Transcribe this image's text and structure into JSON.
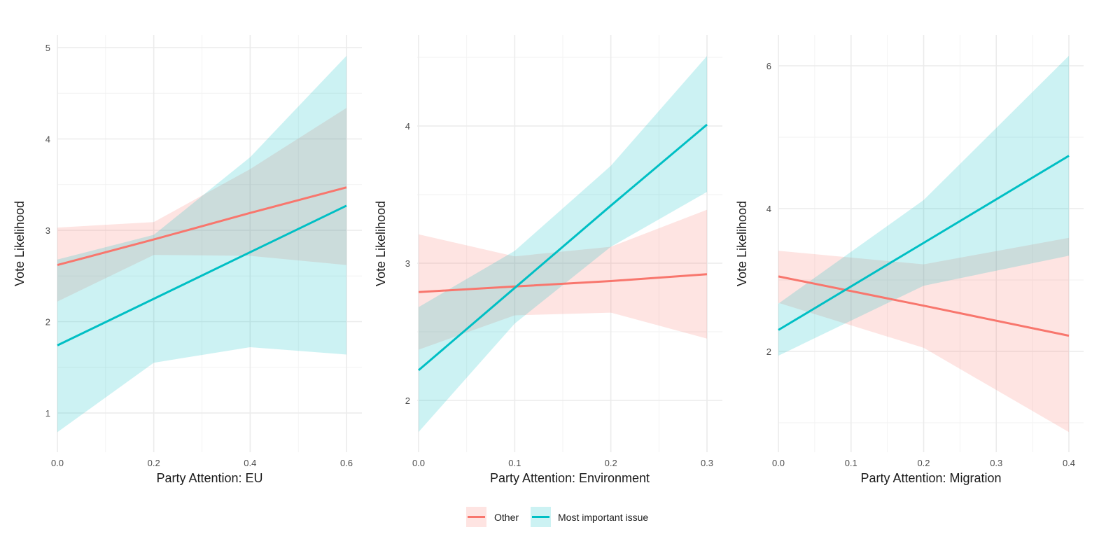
{
  "chart_data": [
    {
      "type": "line",
      "title": "",
      "xlabel": "Party Attention: EU",
      "ylabel": "Vote Likelihood",
      "xlim": [
        0.0,
        0.6
      ],
      "ylim": [
        0.6,
        5.1
      ],
      "x_ticks": [
        0.0,
        0.2,
        0.4,
        0.6
      ],
      "x_tick_labels": [
        "0.0",
        "0.2",
        "0.4",
        "0.6"
      ],
      "y_ticks": [
        1,
        2,
        3,
        4,
        5
      ],
      "y_tick_labels": [
        "1",
        "2",
        "3",
        "4",
        "5"
      ],
      "grid": true,
      "x": [
        0.0,
        0.2,
        0.4,
        0.6
      ],
      "series": [
        {
          "name": "Other",
          "values": [
            2.62,
            2.9,
            3.19,
            3.47
          ],
          "lower": [
            2.22,
            2.73,
            2.72,
            2.62
          ],
          "upper": [
            3.03,
            3.09,
            3.67,
            4.34
          ]
        },
        {
          "name": "Most important issue",
          "values": [
            1.74,
            2.25,
            2.76,
            3.27
          ],
          "lower": [
            0.79,
            1.55,
            1.72,
            1.64
          ],
          "upper": [
            2.68,
            2.95,
            3.8,
            4.91
          ]
        }
      ]
    },
    {
      "type": "line",
      "title": "",
      "xlabel": "Party Attention: Environment",
      "ylabel": "Vote Likelihood",
      "xlim": [
        0.0,
        0.3
      ],
      "ylim": [
        1.72,
        4.5
      ],
      "x_ticks": [
        0.0,
        0.1,
        0.2,
        0.3
      ],
      "x_tick_labels": [
        "0.0",
        "0.1",
        "0.2",
        "0.3"
      ],
      "y_ticks": [
        2,
        3,
        4
      ],
      "y_tick_labels": [
        "2",
        "3",
        "4"
      ],
      "grid": true,
      "x": [
        0.0,
        0.1,
        0.2,
        0.3
      ],
      "series": [
        {
          "name": "Other",
          "values": [
            2.79,
            2.83,
            2.87,
            2.92
          ],
          "lower": [
            2.37,
            2.62,
            2.64,
            2.45
          ],
          "upper": [
            3.21,
            3.05,
            3.12,
            3.39
          ]
        },
        {
          "name": "Most important issue",
          "values": [
            2.22,
            2.82,
            3.42,
            4.01
          ],
          "lower": [
            1.77,
            2.56,
            3.12,
            3.52
          ],
          "upper": [
            2.68,
            3.09,
            3.71,
            4.51
          ]
        }
      ]
    },
    {
      "type": "line",
      "title": "",
      "xlabel": "Party Attention: Migration",
      "ylabel": "Vote Likelihood",
      "xlim": [
        0.0,
        0.4
      ],
      "ylim": [
        0.75,
        6.3
      ],
      "x_ticks": [
        0.0,
        0.1,
        0.2,
        0.3,
        0.4
      ],
      "x_tick_labels": [
        "0.0",
        "0.1",
        "0.2",
        "0.3",
        "0.4"
      ],
      "y_ticks": [
        2,
        4,
        6
      ],
      "y_tick_labels": [
        "2",
        "4",
        "6"
      ],
      "grid": true,
      "x": [
        0.0,
        0.2,
        0.4
      ],
      "series": [
        {
          "name": "Other",
          "values": [
            3.05,
            2.64,
            2.22
          ],
          "lower": [
            2.68,
            2.05,
            0.87
          ],
          "upper": [
            3.41,
            3.22,
            3.59
          ]
        },
        {
          "name": "Most important issue",
          "values": [
            2.3,
            3.52,
            4.74
          ],
          "lower": [
            1.94,
            2.92,
            3.34
          ],
          "upper": [
            2.67,
            4.12,
            6.14
          ]
        }
      ]
    }
  ],
  "legend": {
    "position": "bottom",
    "items": [
      {
        "label": "Other",
        "color": "#F8766D",
        "fill": "#FDE0DE"
      },
      {
        "label": "Most important issue",
        "color": "#00BFC4",
        "fill": "#CCF0F1"
      }
    ]
  },
  "colors": {
    "other_line": "#F8766D",
    "other_ribbon": "#F8766D",
    "important_line": "#00BFC4",
    "important_ribbon": "#00BFC4"
  }
}
